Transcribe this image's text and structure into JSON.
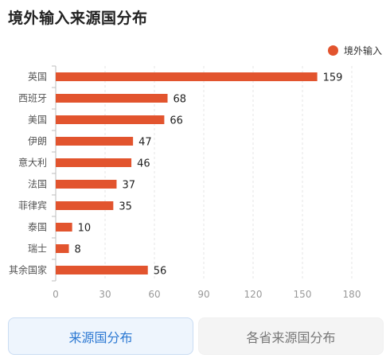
{
  "title": "境外输入来源国分布",
  "colors": {
    "bar": "#e2542e",
    "axis": "#bdbdbd",
    "grid": "#e6e6e6",
    "tick": "#999999"
  },
  "chart_data": {
    "type": "bar",
    "orientation": "horizontal",
    "categories": [
      "英国",
      "西班牙",
      "美国",
      "伊朗",
      "意大利",
      "法国",
      "菲律宾",
      "泰国",
      "瑞士",
      "其余国家"
    ],
    "series": [
      {
        "name": "境外输入",
        "values": [
          159,
          68,
          66,
          47,
          46,
          37,
          35,
          10,
          8,
          56
        ]
      }
    ],
    "xticks": [
      "0",
      "30",
      "60",
      "90",
      "120",
      "150",
      "180"
    ],
    "xlim": [
      0,
      180
    ],
    "grid": "vertical dashed",
    "legend": "top-right"
  },
  "tabs": {
    "origin": "来源国分布",
    "province": "各省来源国分布"
  }
}
